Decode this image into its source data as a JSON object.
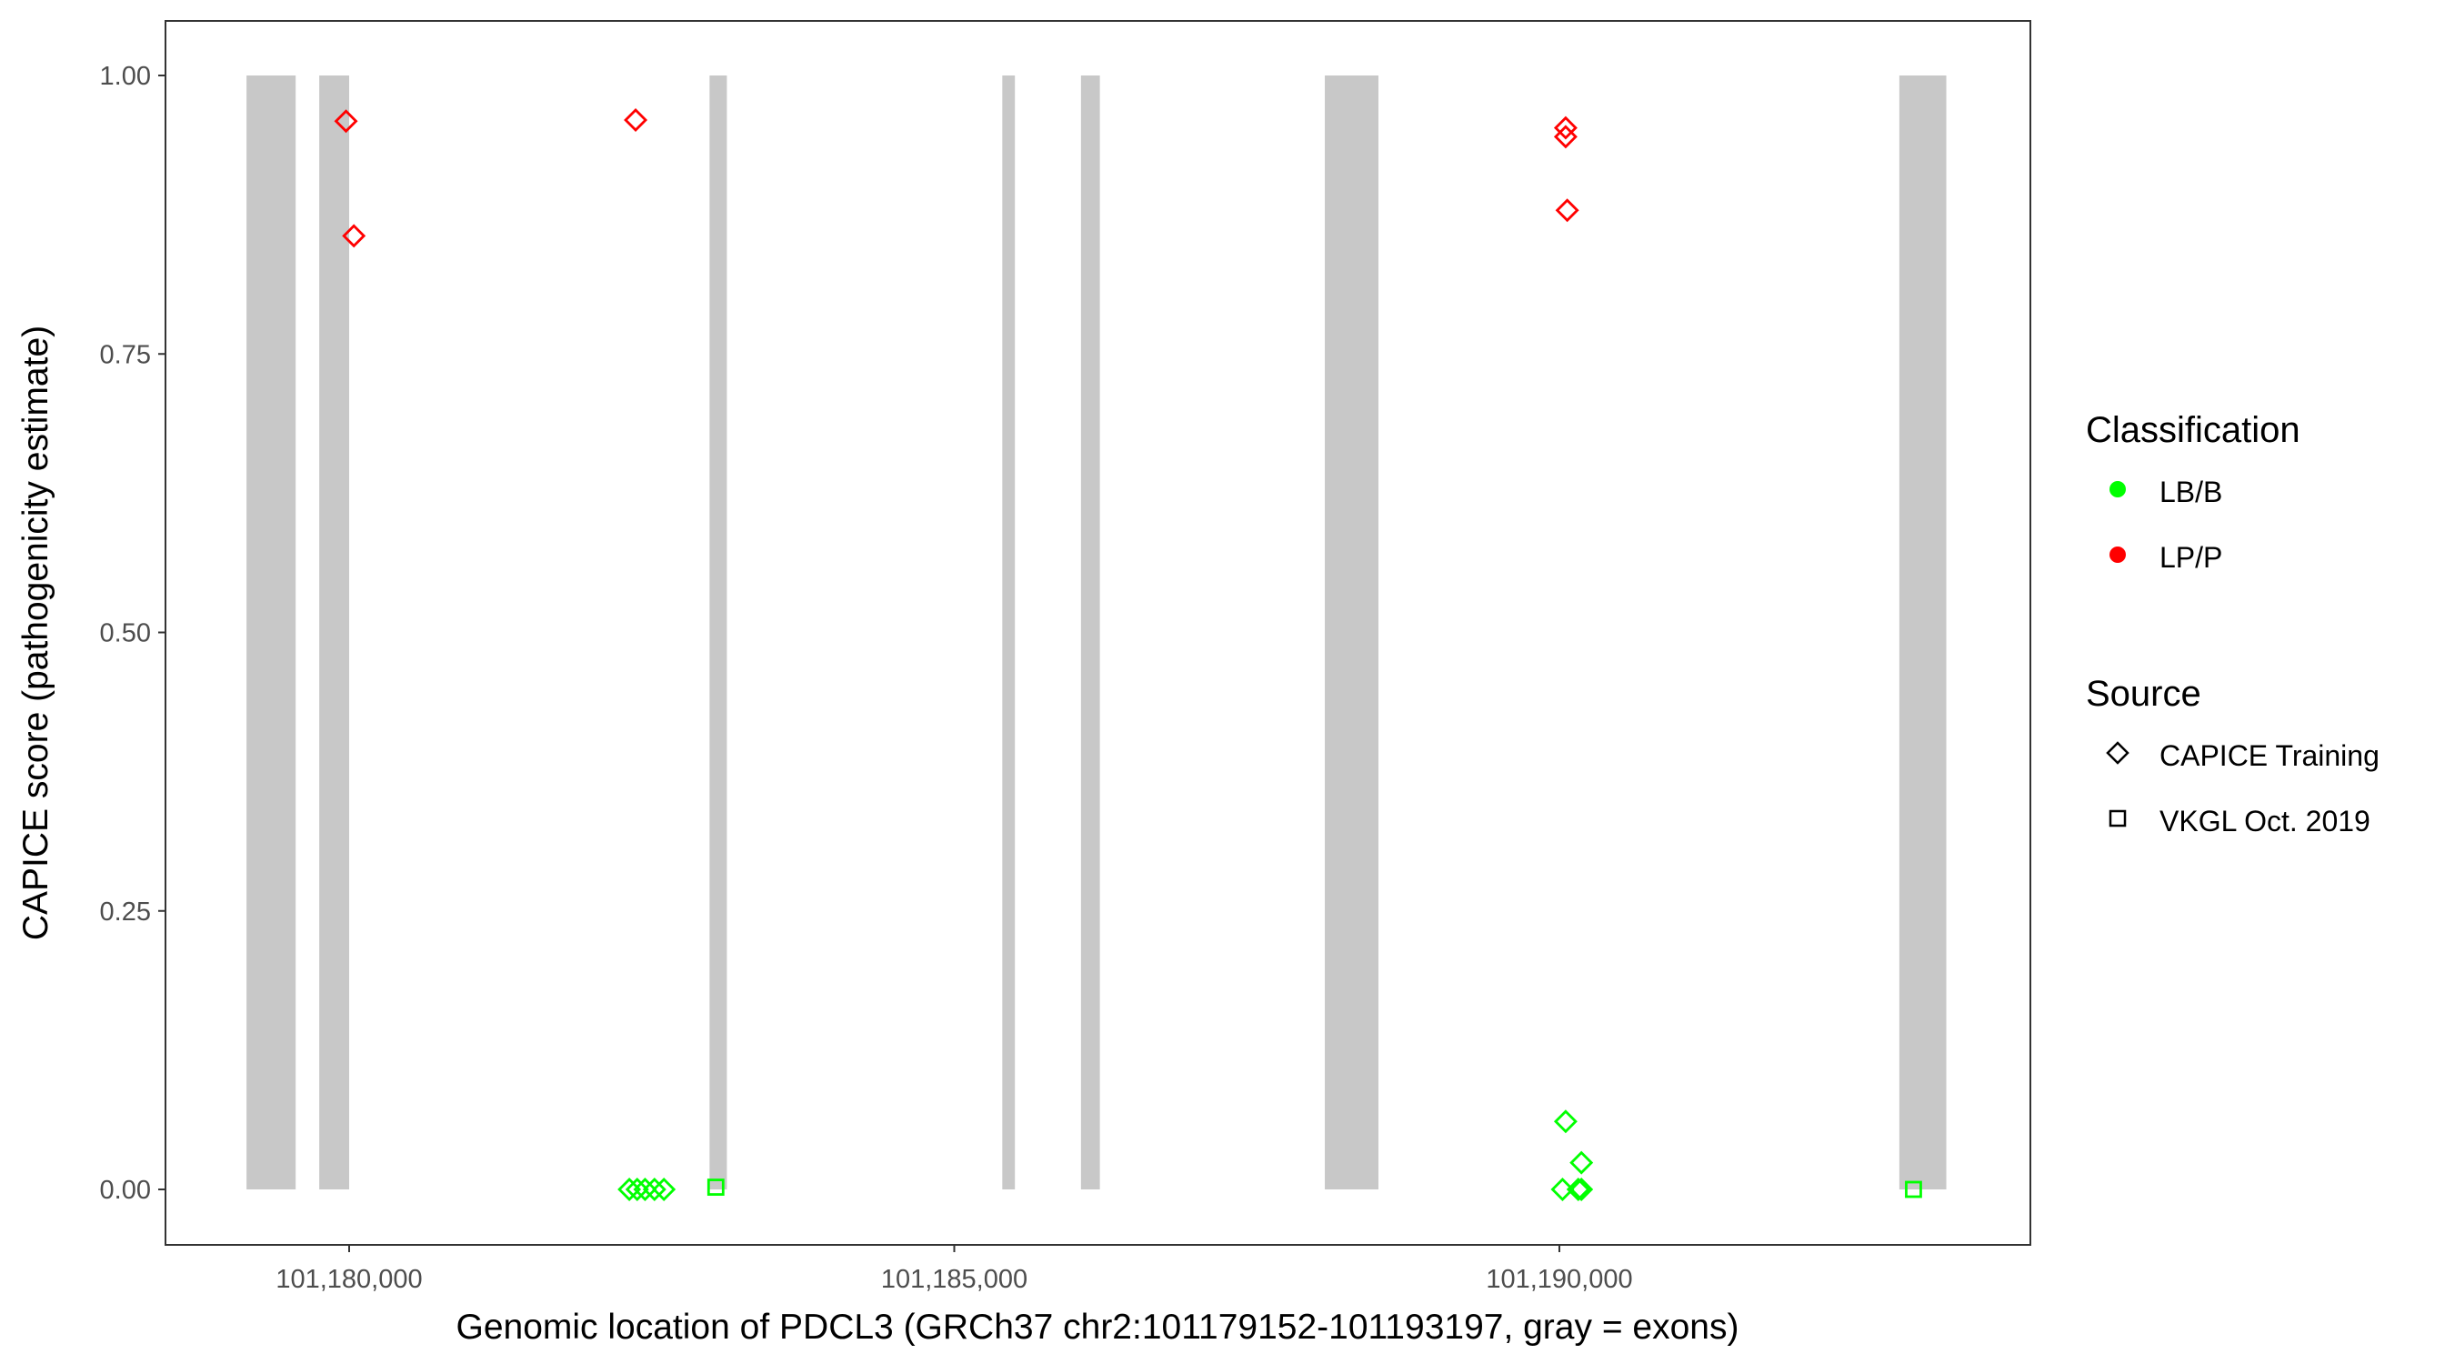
{
  "chart_data": {
    "type": "scatter",
    "xlabel": "Genomic location of PDCL3 (GRCh37 chr2:101179152-101193197, gray = exons)",
    "ylabel": "CAPICE score (pathogenicity estimate)",
    "xlim": [
      101178650,
      101193900
    ],
    "ylim": [
      -0.045,
      1.045
    ],
    "x_ticks": [
      101180000,
      101185000,
      101190000
    ],
    "x_tick_labels": [
      "101,180,000",
      "101,185,000",
      "101,190,000"
    ],
    "y_ticks": [
      0,
      0.25,
      0.5,
      0.75,
      1.0
    ],
    "y_tick_labels": [
      "0.00",
      "0.25",
      "0.50",
      "0.75",
      "1.00"
    ],
    "grid": false,
    "exons": [
      [
        101179152,
        101179558
      ],
      [
        101179753,
        101180000
      ],
      [
        101182978,
        101183121
      ],
      [
        101185397,
        101185501
      ],
      [
        101186047,
        101186203
      ],
      [
        101188062,
        101188505
      ],
      [
        101192809,
        101193197
      ]
    ],
    "exon_color": "#c8c8c8",
    "legend_placement": "right",
    "legends": {
      "classification": {
        "title": "Classification",
        "items": [
          {
            "label": "LB/B",
            "color": "#00ff00"
          },
          {
            "label": "LP/P",
            "color": "#ff0000"
          }
        ]
      },
      "source": {
        "title": "Source",
        "items": [
          {
            "label": "CAPICE Training",
            "shape": "diamond"
          },
          {
            "label": "VKGL Oct. 2019",
            "shape": "square"
          }
        ]
      }
    },
    "points": [
      {
        "x": 101179974,
        "y": 0.959,
        "class": "LP/P",
        "source": "CAPICE Training"
      },
      {
        "x": 101180039,
        "y": 0.856,
        "class": "LP/P",
        "source": "CAPICE Training"
      },
      {
        "x": 101182367,
        "y": 0.96,
        "class": "LP/P",
        "source": "CAPICE Training"
      },
      {
        "x": 101190052,
        "y": 0.953,
        "class": "LP/P",
        "source": "CAPICE Training"
      },
      {
        "x": 101190052,
        "y": 0.945,
        "class": "LP/P",
        "source": "CAPICE Training"
      },
      {
        "x": 101190065,
        "y": 0.879,
        "class": "LP/P",
        "source": "CAPICE Training"
      },
      {
        "x": 101182315,
        "y": 0.0,
        "class": "LB/B",
        "source": "CAPICE Training"
      },
      {
        "x": 101182380,
        "y": 0.0,
        "class": "LB/B",
        "source": "CAPICE Training"
      },
      {
        "x": 101182445,
        "y": 0.0,
        "class": "LB/B",
        "source": "CAPICE Training"
      },
      {
        "x": 101182523,
        "y": 0.0,
        "class": "LB/B",
        "source": "CAPICE Training"
      },
      {
        "x": 101182601,
        "y": 0.0,
        "class": "LB/B",
        "source": "CAPICE Training"
      },
      {
        "x": 101183030,
        "y": 0.002,
        "class": "LB/B",
        "source": "VKGL Oct. 2019"
      },
      {
        "x": 101190052,
        "y": 0.061,
        "class": "LB/B",
        "source": "CAPICE Training"
      },
      {
        "x": 101190182,
        "y": 0.024,
        "class": "LB/B",
        "source": "CAPICE Training"
      },
      {
        "x": 101190026,
        "y": 0.0,
        "class": "LB/B",
        "source": "CAPICE Training"
      },
      {
        "x": 101190156,
        "y": 0.0,
        "class": "LB/B",
        "source": "CAPICE Training"
      },
      {
        "x": 101190182,
        "y": 0.0,
        "class": "LB/B",
        "source": "CAPICE Training"
      },
      {
        "x": 101192926,
        "y": 0.0,
        "class": "LB/B",
        "source": "VKGL Oct. 2019"
      }
    ]
  }
}
